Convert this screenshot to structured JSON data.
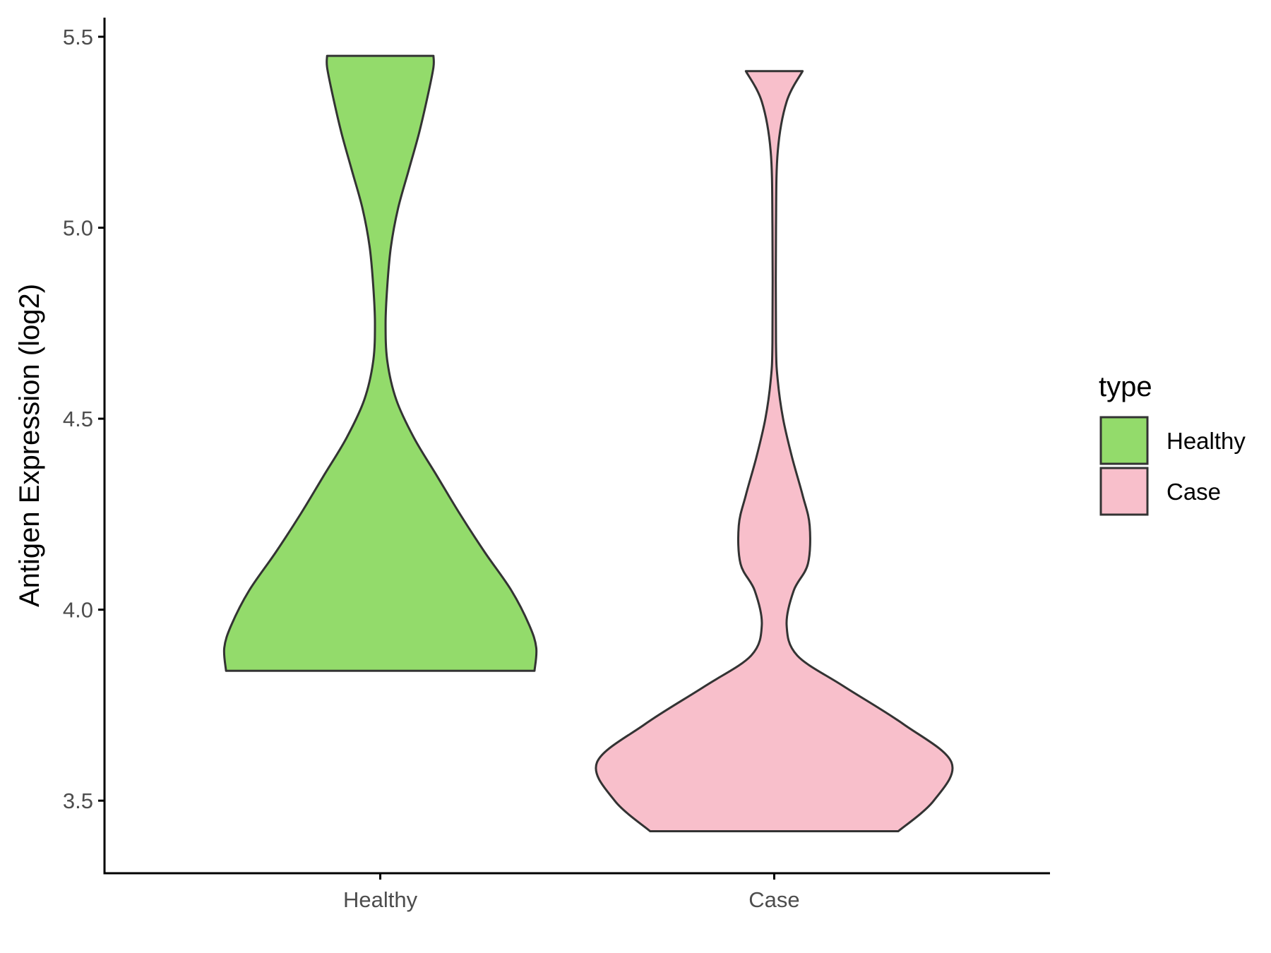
{
  "chart_data": {
    "type": "violin",
    "ylabel": "Antigen Expression (log2)",
    "xlabel": "",
    "ylim": [
      3.31,
      5.55
    ],
    "yticks": [
      3.5,
      4.0,
      4.5,
      5.0,
      5.5
    ],
    "ytick_labels": [
      "3.5",
      "4.0",
      "4.5",
      "5.0",
      "5.5"
    ],
    "categories": [
      "Healthy",
      "Case"
    ],
    "legend": {
      "title": "type",
      "position": "right",
      "entries": [
        "Healthy",
        "Case"
      ]
    },
    "grid": false,
    "series": [
      {
        "name": "Healthy",
        "color": "#93DB6B",
        "min": 3.84,
        "max": 5.45,
        "profile": [
          [
            3.84,
            0.87
          ],
          [
            3.9,
            0.88
          ],
          [
            3.96,
            0.84
          ],
          [
            4.05,
            0.74
          ],
          [
            4.15,
            0.59
          ],
          [
            4.25,
            0.45
          ],
          [
            4.35,
            0.32
          ],
          [
            4.45,
            0.19
          ],
          [
            4.55,
            0.09
          ],
          [
            4.65,
            0.04
          ],
          [
            4.75,
            0.03
          ],
          [
            4.85,
            0.04
          ],
          [
            4.95,
            0.06
          ],
          [
            5.05,
            0.1
          ],
          [
            5.15,
            0.16
          ],
          [
            5.25,
            0.22
          ],
          [
            5.35,
            0.27
          ],
          [
            5.42,
            0.3
          ],
          [
            5.45,
            0.3
          ]
        ]
      },
      {
        "name": "Case",
        "color": "#F8BFCB",
        "min": 3.42,
        "max": 5.41,
        "profile": [
          [
            3.42,
            0.7
          ],
          [
            3.5,
            0.9
          ],
          [
            3.6,
            1.0
          ],
          [
            3.7,
            0.73
          ],
          [
            3.8,
            0.39
          ],
          [
            3.88,
            0.13
          ],
          [
            3.96,
            0.07
          ],
          [
            4.05,
            0.11
          ],
          [
            4.12,
            0.19
          ],
          [
            4.22,
            0.2
          ],
          [
            4.3,
            0.16
          ],
          [
            4.4,
            0.1
          ],
          [
            4.5,
            0.05
          ],
          [
            4.6,
            0.02
          ],
          [
            4.7,
            0.01
          ],
          [
            5.0,
            0.01
          ],
          [
            5.2,
            0.02
          ],
          [
            5.33,
            0.07
          ],
          [
            5.41,
            0.16
          ]
        ]
      }
    ]
  }
}
